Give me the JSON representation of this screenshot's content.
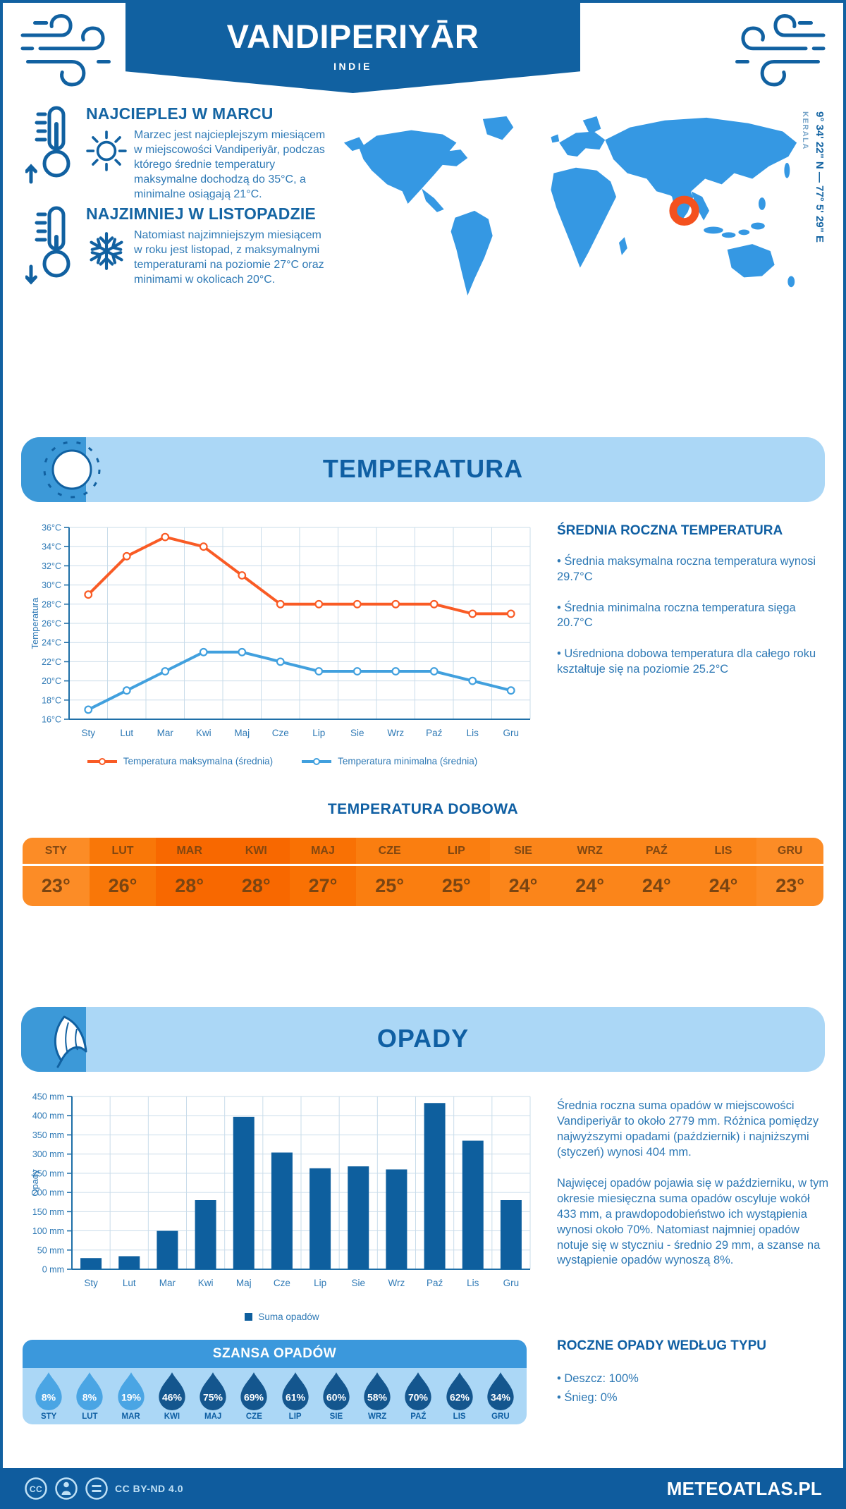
{
  "header": {
    "title": "VANDIPERIYĀR",
    "subtitle": "INDIE"
  },
  "map": {
    "coordinates": "9° 34' 22\" N — 77° 5' 29\" E",
    "region": "KERALA"
  },
  "highlights": [
    {
      "title": "NAJCIEPLEJ W MARCU",
      "text": "Marzec jest najcieplejszym miesiącem w miejscowości Vandiperiyār, podczas którego średnie temperatury maksymalne dochodzą do 35°C, a minimalne osiągają 21°C."
    },
    {
      "title": "NAJZIMNIEJ W LISTOPADZIE",
      "text": "Natomiast najzimniejszym miesiącem w roku jest listopad, z maksymalnymi temperaturami na poziomie 27°C oraz minimami w okolicach 20°C."
    }
  ],
  "temperature_section": {
    "title": "TEMPERATURA",
    "summary_title": "ŚREDNIA ROCZNA TEMPERATURA",
    "summary_bullets": [
      "• Średnia maksymalna roczna temperatura wynosi 29.7°C",
      "• Średnia minimalna roczna temperatura sięga 20.7°C",
      "• Uśredniona dobowa temperatura dla całego roku kształtuje się na poziomie 25.2°C"
    ],
    "daily": {
      "title": "TEMPERATURA DOBOWA",
      "months": [
        "STY",
        "LUT",
        "MAR",
        "KWI",
        "MAJ",
        "CZE",
        "LIP",
        "SIE",
        "WRZ",
        "PAŹ",
        "LIS",
        "GRU"
      ],
      "values": [
        23,
        26,
        28,
        28,
        27,
        25,
        25,
        24,
        24,
        24,
        24,
        23
      ],
      "suffix": "°",
      "cell_colors": [
        "#fc8c26",
        "#f97708",
        "#f86800",
        "#f86800",
        "#f97104",
        "#fa7e10",
        "#fa7e10",
        "#fb851a",
        "#fb851a",
        "#fb851a",
        "#fb851a",
        "#fc8c26"
      ]
    }
  },
  "precipitation_section": {
    "title": "OPADY",
    "paragraphs": [
      "Średnia roczna suma opadów w miejscowości Vandiperiyār to około 2779 mm. Różnica pomiędzy najwyższymi opadami (październik) i najniższymi (styczeń) wynosi 404 mm.",
      "Najwięcej opadów pojawia się w październiku, w tym okresie miesięczna suma opadów oscyluje wokół 433 mm, a prawdopodobieństwo ich wystąpienia wynosi około 70%. Natomiast najmniej opadów notuje się w styczniu - średnio 29 mm, a szanse na wystąpienie opadów wynoszą 8%."
    ],
    "chance": {
      "title": "SZANSA OPADÓW",
      "months": [
        "STY",
        "LUT",
        "MAR",
        "KWI",
        "MAJ",
        "CZE",
        "LIP",
        "SIE",
        "WRZ",
        "PAŹ",
        "LIS",
        "GRU"
      ],
      "values": [
        8,
        8,
        19,
        46,
        75,
        69,
        61,
        60,
        58,
        70,
        62,
        34
      ],
      "drop_colors": [
        "#4aa5e4",
        "#4aa5e4",
        "#4aa5e4",
        "#14568e",
        "#14568e",
        "#14568e",
        "#14568e",
        "#14568e",
        "#14568e",
        "#14568e",
        "#14568e",
        "#14568e"
      ]
    },
    "by_type": {
      "title": "ROCZNE OPADY WEDŁUG TYPU",
      "bullets": [
        "• Deszcz: 100%",
        "• Śnieg: 0%"
      ]
    }
  },
  "footer": {
    "license": "CC BY-ND 4.0",
    "brand": "METEOATLAS.PL"
  },
  "colors": {
    "brand_blue": "#1161a1",
    "heading_blue": "#0f5fa3",
    "text_blue": "#2e79b5",
    "grid": "#c9dcea",
    "axis": "#1f6fa8",
    "marker_orange": "#f4511e",
    "map_blue": "#3598e3",
    "bar": "#0e5f9e"
  },
  "chart_data": [
    {
      "type": "line",
      "categories": [
        "Sty",
        "Lut",
        "Mar",
        "Kwi",
        "Maj",
        "Cze",
        "Lip",
        "Sie",
        "Wrz",
        "Paź",
        "Lis",
        "Gru"
      ],
      "series": [
        {
          "name": "Temperatura maksymalna (średnia)",
          "color": "#f95b25",
          "values": [
            29,
            33,
            35,
            34,
            31,
            28,
            28,
            28,
            28,
            28,
            27,
            27
          ]
        },
        {
          "name": "Temperatura minimalna (średnia)",
          "color": "#41a0de",
          "values": [
            17,
            19,
            21,
            23,
            23,
            22,
            21,
            21,
            21,
            21,
            20,
            19
          ]
        }
      ],
      "ylabel": "Temperatura",
      "ylim": [
        16,
        36
      ],
      "ytick_step": 2,
      "ytick_suffix": "°C",
      "grid": true,
      "legend_position": "bottom"
    },
    {
      "type": "bar",
      "categories": [
        "Sty",
        "Lut",
        "Mar",
        "Kwi",
        "Maj",
        "Cze",
        "Lip",
        "Sie",
        "Wrz",
        "Paź",
        "Lis",
        "Gru"
      ],
      "values": [
        29,
        34,
        100,
        180,
        397,
        304,
        263,
        268,
        260,
        433,
        335,
        180
      ],
      "series_name": "Suma opadów",
      "ylabel": "Opady",
      "ylim": [
        0,
        450
      ],
      "ytick_step": 50,
      "ytick_suffix": " mm",
      "color": "#0e5f9e",
      "grid": true,
      "legend_position": "bottom"
    }
  ]
}
